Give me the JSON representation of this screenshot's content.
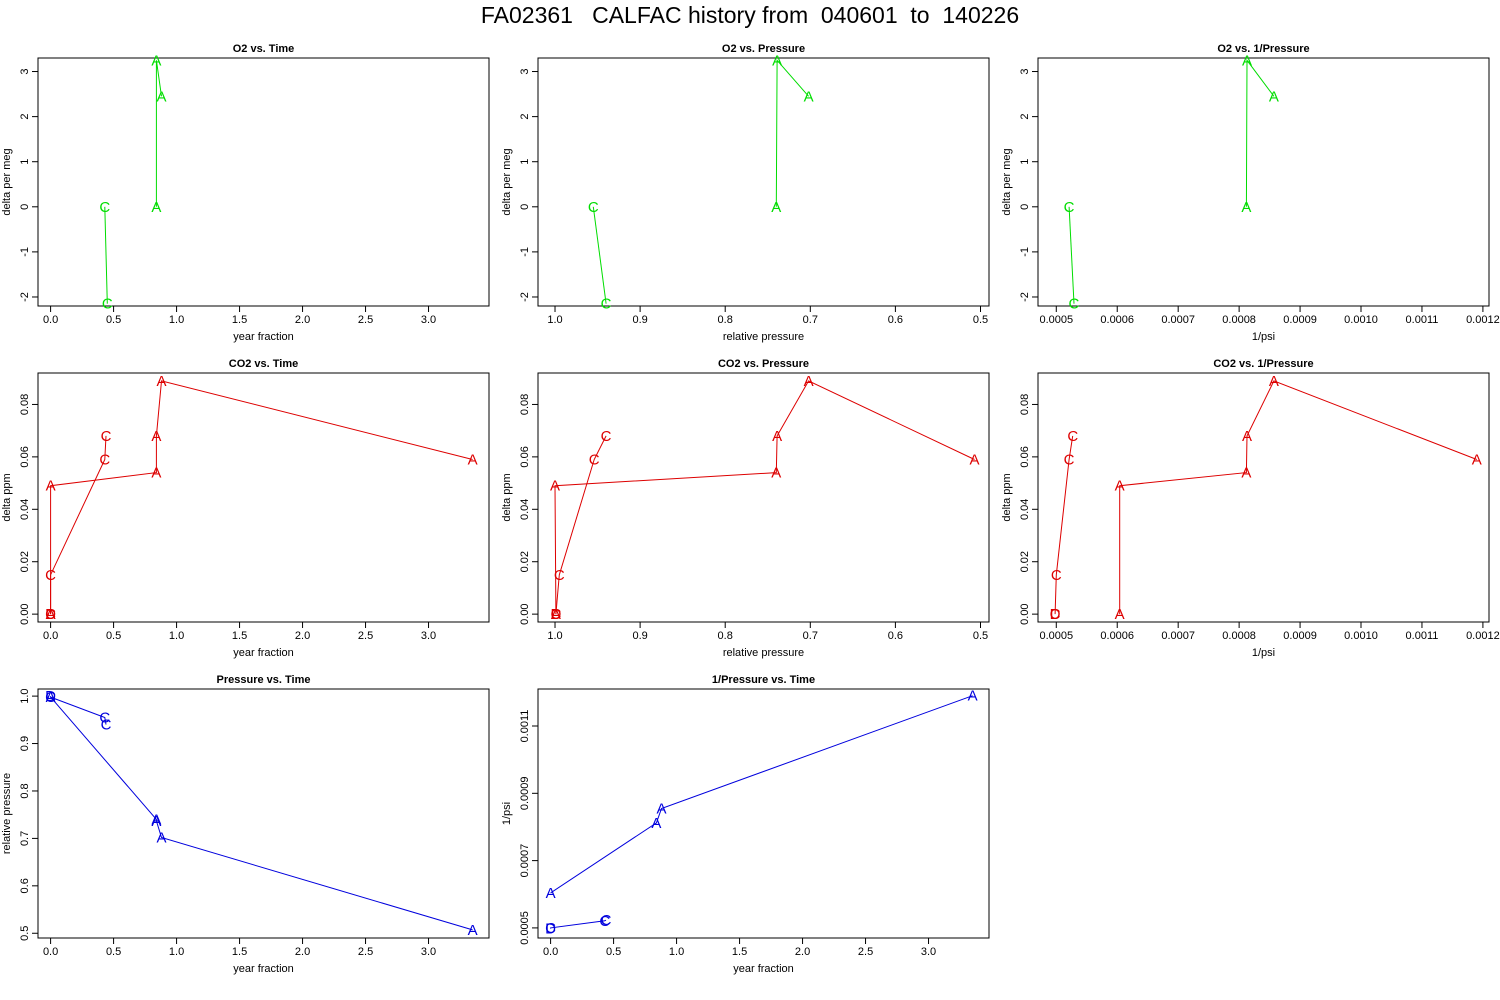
{
  "title": "FA02361   CALFAC history from  040601  to  140226",
  "chart_data": [
    {
      "type": "line",
      "title": "O2 vs. Time",
      "xlabel": "year fraction",
      "ylabel": "delta per meg",
      "xlim": [
        -0.1,
        3.48
      ],
      "ylim": [
        -2.2,
        3.3
      ],
      "xticks": [
        "0.0",
        "0.5",
        "1.0",
        "1.5",
        "2.0",
        "2.5",
        "3.0"
      ],
      "xtick_values": [
        0,
        0.5,
        1,
        1.5,
        2,
        2.5,
        3
      ],
      "yticks": [
        "-2",
        "-1",
        "0",
        "1",
        "2",
        "3"
      ],
      "ytick_values": [
        -2,
        -1,
        0,
        1,
        2,
        3
      ],
      "color": "#00dd00",
      "series": [
        {
          "points": [
            {
              "x": 0.43,
              "y": 0.0,
              "label": "C"
            },
            {
              "x": 0.45,
              "y": -2.15,
              "label": "C"
            }
          ]
        },
        {
          "points": [
            {
              "x": 0.84,
              "y": 0.0,
              "label": "A"
            },
            {
              "x": 0.84,
              "y": 3.25,
              "label": "A"
            },
            {
              "x": 0.88,
              "y": 2.45,
              "label": "A"
            }
          ]
        }
      ]
    },
    {
      "type": "line",
      "title": "O2 vs. Pressure",
      "xlabel": "relative pressure",
      "ylabel": "delta per meg",
      "xlim": [
        1.02,
        0.49
      ],
      "ylim": [
        -2.2,
        3.3
      ],
      "xticks": [
        "1.0",
        "0.9",
        "0.8",
        "0.7",
        "0.6",
        "0.5"
      ],
      "xtick_values": [
        1.0,
        0.9,
        0.8,
        0.7,
        0.6,
        0.5
      ],
      "yticks": [
        "-2",
        "-1",
        "0",
        "1",
        "2",
        "3"
      ],
      "ytick_values": [
        -2,
        -1,
        0,
        1,
        2,
        3
      ],
      "color": "#00dd00",
      "series": [
        {
          "points": [
            {
              "x": 0.955,
              "y": 0.0,
              "label": "C"
            },
            {
              "x": 0.94,
              "y": -2.15,
              "label": "C"
            }
          ]
        },
        {
          "points": [
            {
              "x": 0.74,
              "y": 0.0,
              "label": "A"
            },
            {
              "x": 0.739,
              "y": 3.25,
              "label": "A"
            },
            {
              "x": 0.702,
              "y": 2.45,
              "label": "A"
            }
          ]
        }
      ]
    },
    {
      "type": "line",
      "title": "O2 vs. 1/Pressure",
      "xlabel": "1/psi",
      "ylabel": "delta per meg",
      "xlim": [
        0.00047,
        0.00121
      ],
      "ylim": [
        -2.2,
        3.3
      ],
      "xticks": [
        "0.0005",
        "0.0006",
        "0.0007",
        "0.0008",
        "0.0009",
        "0.0010",
        "0.0011",
        "0.0012"
      ],
      "xtick_values": [
        0.0005,
        0.0006,
        0.0007,
        0.0008,
        0.0009,
        0.001,
        0.0011,
        0.0012
      ],
      "yticks": [
        "-2",
        "-1",
        "0",
        "1",
        "2",
        "3"
      ],
      "ytick_values": [
        -2,
        -1,
        0,
        1,
        2,
        3
      ],
      "color": "#00dd00",
      "series": [
        {
          "points": [
            {
              "x": 0.000521,
              "y": 0.0,
              "label": "C"
            },
            {
              "x": 0.000529,
              "y": -2.15,
              "label": "C"
            }
          ]
        },
        {
          "points": [
            {
              "x": 0.000812,
              "y": 0.0,
              "label": "A"
            },
            {
              "x": 0.000813,
              "y": 3.25,
              "label": "A"
            },
            {
              "x": 0.000857,
              "y": 2.45,
              "label": "A"
            }
          ]
        }
      ]
    },
    {
      "type": "line",
      "title": "CO2 vs. Time",
      "xlabel": "year fraction",
      "ylabel": "delta ppm",
      "xlim": [
        -0.1,
        3.48
      ],
      "ylim": [
        -0.003,
        0.092
      ],
      "xticks": [
        "0.0",
        "0.5",
        "1.0",
        "1.5",
        "2.0",
        "2.5",
        "3.0"
      ],
      "xtick_values": [
        0,
        0.5,
        1,
        1.5,
        2,
        2.5,
        3
      ],
      "yticks": [
        "0.00",
        "0.02",
        "0.04",
        "0.06",
        "0.08"
      ],
      "ytick_values": [
        0,
        0.02,
        0.04,
        0.06,
        0.08
      ],
      "color": "#dd0000",
      "series": [
        {
          "points": [
            {
              "x": 0.0,
              "y": 0.0,
              "label": "D"
            },
            {
              "x": 0.0,
              "y": 0.0,
              "label": "C"
            },
            {
              "x": 0.0,
              "y": 0.015,
              "label": "C"
            },
            {
              "x": 0.43,
              "y": 0.059,
              "label": "C"
            },
            {
              "x": 0.44,
              "y": 0.068,
              "label": "C"
            }
          ]
        },
        {
          "points": [
            {
              "x": 0.0,
              "y": 0.0,
              "label": "A"
            },
            {
              "x": 0.0,
              "y": 0.049,
              "label": "A"
            },
            {
              "x": 0.84,
              "y": 0.054,
              "label": "A"
            },
            {
              "x": 0.84,
              "y": 0.068,
              "label": "A"
            },
            {
              "x": 0.88,
              "y": 0.089,
              "label": "A"
            },
            {
              "x": 3.35,
              "y": 0.059,
              "label": "A"
            }
          ]
        }
      ]
    },
    {
      "type": "line",
      "title": "CO2 vs. Pressure",
      "xlabel": "relative pressure",
      "ylabel": "delta ppm",
      "xlim": [
        1.02,
        0.49
      ],
      "ylim": [
        -0.003,
        0.092
      ],
      "xticks": [
        "1.0",
        "0.9",
        "0.8",
        "0.7",
        "0.6",
        "0.5"
      ],
      "xtick_values": [
        1.0,
        0.9,
        0.8,
        0.7,
        0.6,
        0.5
      ],
      "yticks": [
        "0.00",
        "0.02",
        "0.04",
        "0.06",
        "0.08"
      ],
      "ytick_values": [
        0,
        0.02,
        0.04,
        0.06,
        0.08
      ],
      "color": "#dd0000",
      "series": [
        {
          "points": [
            {
              "x": 0.999,
              "y": 0.0,
              "label": "D"
            },
            {
              "x": 0.999,
              "y": 0.0,
              "label": "C"
            },
            {
              "x": 0.995,
              "y": 0.015,
              "label": "C"
            },
            {
              "x": 0.954,
              "y": 0.059,
              "label": "C"
            },
            {
              "x": 0.94,
              "y": 0.068,
              "label": "C"
            }
          ]
        },
        {
          "points": [
            {
              "x": 0.999,
              "y": 0.0,
              "label": "A"
            },
            {
              "x": 1.0,
              "y": 0.049,
              "label": "A"
            },
            {
              "x": 0.74,
              "y": 0.054,
              "label": "A"
            },
            {
              "x": 0.739,
              "y": 0.068,
              "label": "A"
            },
            {
              "x": 0.702,
              "y": 0.089,
              "label": "A"
            },
            {
              "x": 0.507,
              "y": 0.059,
              "label": "A"
            }
          ]
        }
      ]
    },
    {
      "type": "line",
      "title": "CO2 vs. 1/Pressure",
      "xlabel": "1/psi",
      "ylabel": "delta ppm",
      "xlim": [
        0.00047,
        0.00121
      ],
      "ylim": [
        -0.003,
        0.092
      ],
      "xticks": [
        "0.0005",
        "0.0006",
        "0.0007",
        "0.0008",
        "0.0009",
        "0.0010",
        "0.0011",
        "0.0012"
      ],
      "xtick_values": [
        0.0005,
        0.0006,
        0.0007,
        0.0008,
        0.0009,
        0.001,
        0.0011,
        0.0012
      ],
      "yticks": [
        "0.00",
        "0.02",
        "0.04",
        "0.06",
        "0.08"
      ],
      "ytick_values": [
        0,
        0.02,
        0.04,
        0.06,
        0.08
      ],
      "color": "#dd0000",
      "series": [
        {
          "points": [
            {
              "x": 0.000498,
              "y": 0.0,
              "label": "D"
            },
            {
              "x": 0.000498,
              "y": 0.0,
              "label": "C"
            },
            {
              "x": 0.0005,
              "y": 0.015,
              "label": "C"
            },
            {
              "x": 0.000521,
              "y": 0.059,
              "label": "C"
            },
            {
              "x": 0.000527,
              "y": 0.068,
              "label": "C"
            }
          ]
        },
        {
          "points": [
            {
              "x": 0.000604,
              "y": 0.0,
              "label": "A"
            },
            {
              "x": 0.000604,
              "y": 0.049,
              "label": "A"
            },
            {
              "x": 0.000812,
              "y": 0.054,
              "label": "A"
            },
            {
              "x": 0.000813,
              "y": 0.068,
              "label": "A"
            },
            {
              "x": 0.000857,
              "y": 0.089,
              "label": "A"
            },
            {
              "x": 0.00119,
              "y": 0.059,
              "label": "A"
            }
          ]
        }
      ]
    },
    {
      "type": "line",
      "title": "Pressure vs. Time",
      "xlabel": "year fraction",
      "ylabel": "relative pressure",
      "xlim": [
        -0.1,
        3.48
      ],
      "ylim": [
        0.49,
        1.015
      ],
      "xticks": [
        "0.0",
        "0.5",
        "1.0",
        "1.5",
        "2.0",
        "2.5",
        "3.0"
      ],
      "xtick_values": [
        0,
        0.5,
        1,
        1.5,
        2,
        2.5,
        3
      ],
      "yticks": [
        "0.5",
        "0.6",
        "0.7",
        "0.8",
        "0.9",
        "1.0"
      ],
      "ytick_values": [
        0.5,
        0.6,
        0.7,
        0.8,
        0.9,
        1.0
      ],
      "color": "#0000dd",
      "series": [
        {
          "points": [
            {
              "x": 0.0,
              "y": 1.0,
              "label": "D"
            },
            {
              "x": 0.0,
              "y": 0.998,
              "label": "C"
            },
            {
              "x": 0.43,
              "y": 0.955,
              "label": "C"
            },
            {
              "x": 0.44,
              "y": 0.94,
              "label": "C"
            }
          ]
        },
        {
          "points": [
            {
              "x": 0.0,
              "y": 0.998,
              "label": "A"
            },
            {
              "x": 0.84,
              "y": 0.74,
              "label": "A"
            },
            {
              "x": 0.84,
              "y": 0.737,
              "label": "A"
            },
            {
              "x": 0.88,
              "y": 0.702,
              "label": "A"
            },
            {
              "x": 3.35,
              "y": 0.507,
              "label": "A"
            }
          ]
        }
      ]
    },
    {
      "type": "line",
      "title": "1/Pressure vs. Time",
      "xlabel": "year fraction",
      "ylabel": "1/psi",
      "xlim": [
        -0.1,
        3.48
      ],
      "ylim": [
        0.00047,
        0.00121
      ],
      "xticks": [
        "0.0",
        "0.5",
        "1.0",
        "1.5",
        "2.0",
        "2.5",
        "3.0"
      ],
      "xtick_values": [
        0,
        0.5,
        1,
        1.5,
        2,
        2.5,
        3
      ],
      "yticks": [
        "0.0005",
        "0.0007",
        "0.0009",
        "0.0011"
      ],
      "ytick_values": [
        0.0005,
        0.0007,
        0.0009,
        0.0011
      ],
      "color": "#0000dd",
      "series": [
        {
          "points": [
            {
              "x": 0.0,
              "y": 0.000498,
              "label": "D"
            },
            {
              "x": 0.0,
              "y": 0.0005,
              "label": "C"
            },
            {
              "x": 0.43,
              "y": 0.000521,
              "label": "C"
            },
            {
              "x": 0.44,
              "y": 0.000523,
              "label": "C"
            }
          ]
        },
        {
          "points": [
            {
              "x": 0.0,
              "y": 0.000604,
              "label": "A"
            },
            {
              "x": 0.84,
              "y": 0.000812,
              "label": "A"
            },
            {
              "x": 0.88,
              "y": 0.000855,
              "label": "A"
            },
            {
              "x": 3.35,
              "y": 0.00119,
              "label": "A"
            }
          ]
        }
      ]
    }
  ]
}
